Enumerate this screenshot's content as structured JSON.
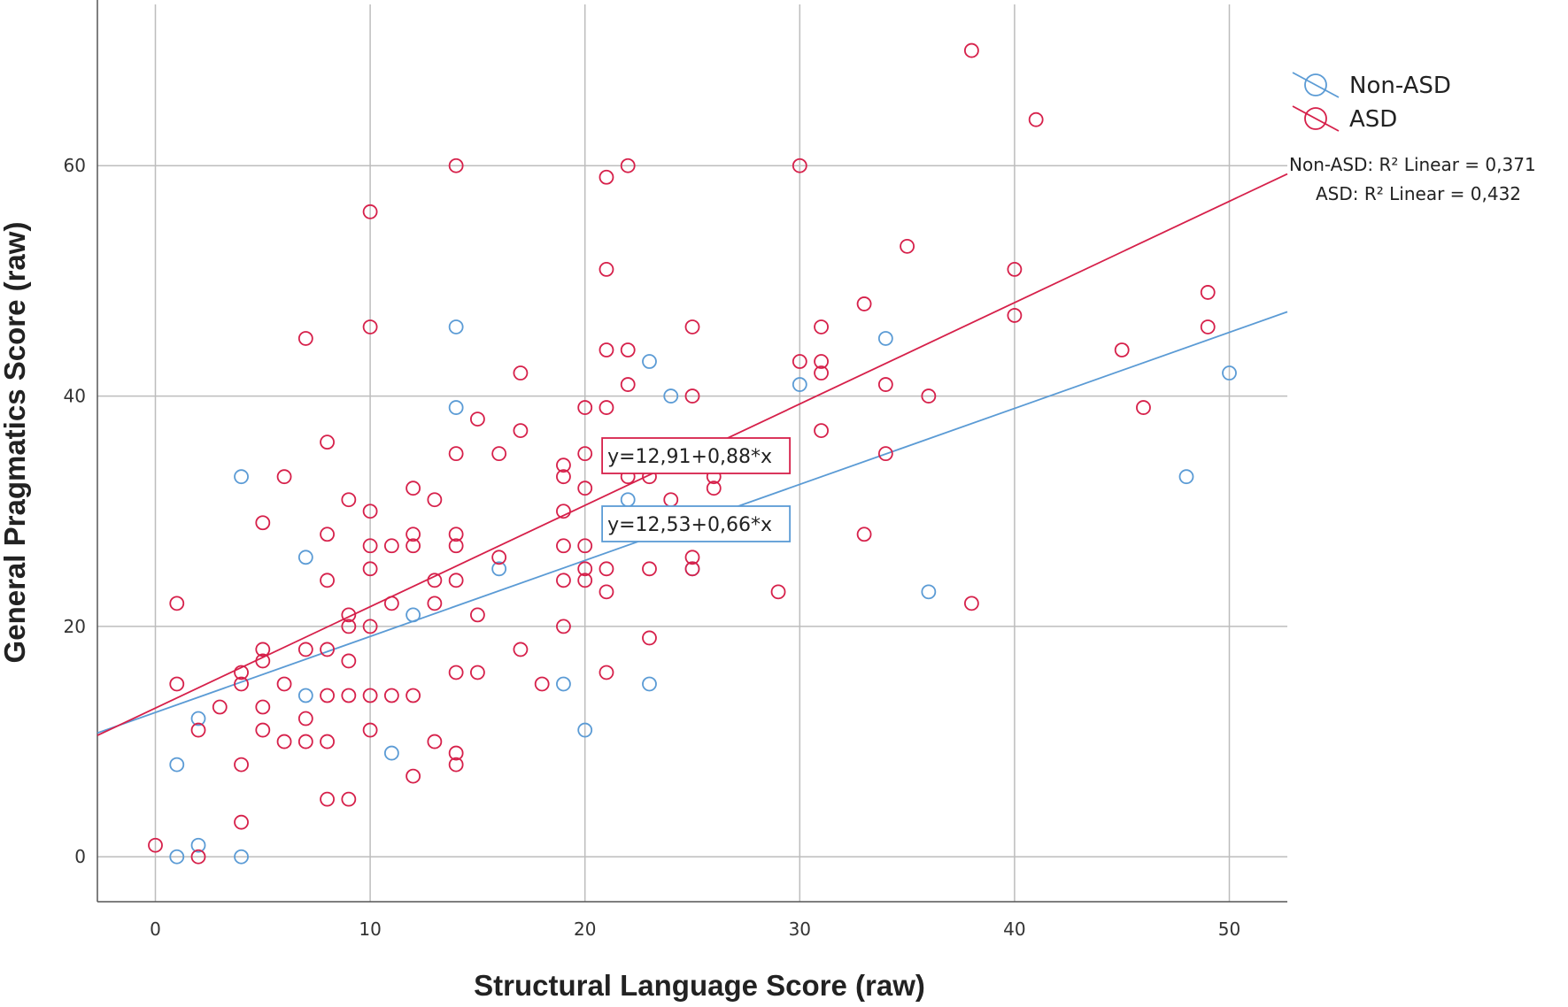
{
  "chart_data": {
    "type": "scatter",
    "xlabel": "Structural Language Score (raw)",
    "ylabel": "General Pragmatics Score (raw)",
    "xlim": [
      -2.7,
      52.7
    ],
    "ylim": [
      -3.9,
      74
    ],
    "xticks": [
      "0",
      "10",
      "20",
      "30",
      "40",
      "50"
    ],
    "yticks": [
      "0",
      "20",
      "40",
      "60"
    ],
    "grid": true,
    "legend_position": "top-right",
    "colors": {
      "non_asd": "#5b9bd5",
      "asd": "#d6204a",
      "grid": "#bdbdbd",
      "axis": "#555555"
    },
    "series": [
      {
        "name": "Non-ASD",
        "key": "non_asd",
        "r2_label": "Non-ASD: R² Linear = 0,371",
        "equation": "y=12,53+0,66*x",
        "intercept": 12.53,
        "slope": 0.66,
        "points": [
          [
            1,
            0
          ],
          [
            1,
            8
          ],
          [
            2,
            1
          ],
          [
            2,
            12
          ],
          [
            4,
            0
          ],
          [
            4,
            33
          ],
          [
            7,
            26
          ],
          [
            7,
            14
          ],
          [
            12,
            21
          ],
          [
            11,
            9
          ],
          [
            14,
            46
          ],
          [
            14,
            39
          ],
          [
            16,
            25
          ],
          [
            19,
            15
          ],
          [
            20,
            11
          ],
          [
            22,
            31
          ],
          [
            23,
            43
          ],
          [
            23,
            15
          ],
          [
            24,
            40
          ],
          [
            25,
            25
          ],
          [
            30,
            41
          ],
          [
            34,
            45
          ],
          [
            36,
            23
          ],
          [
            48,
            33
          ],
          [
            50,
            42
          ]
        ]
      },
      {
        "name": "ASD",
        "key": "asd",
        "r2_label": "ASD: R² Linear = 0,432",
        "equation": "y=12,91+0,88*x",
        "intercept": 12.91,
        "slope": 0.88,
        "points": [
          [
            0,
            1
          ],
          [
            1,
            22
          ],
          [
            1,
            15
          ],
          [
            2,
            11
          ],
          [
            2,
            0
          ],
          [
            3,
            13
          ],
          [
            4,
            16
          ],
          [
            4,
            15
          ],
          [
            4,
            8
          ],
          [
            4,
            3
          ],
          [
            5,
            29
          ],
          [
            5,
            18
          ],
          [
            5,
            17
          ],
          [
            5,
            13
          ],
          [
            5,
            11
          ],
          [
            6,
            33
          ],
          [
            6,
            15
          ],
          [
            6,
            10
          ],
          [
            7,
            45
          ],
          [
            7,
            18
          ],
          [
            7,
            12
          ],
          [
            7,
            10
          ],
          [
            8,
            36
          ],
          [
            8,
            28
          ],
          [
            8,
            24
          ],
          [
            8,
            18
          ],
          [
            8,
            14
          ],
          [
            8,
            10
          ],
          [
            8,
            5
          ],
          [
            9,
            31
          ],
          [
            9,
            21
          ],
          [
            9,
            20
          ],
          [
            9,
            17
          ],
          [
            9,
            14
          ],
          [
            9,
            5
          ],
          [
            10,
            56
          ],
          [
            10,
            46
          ],
          [
            10,
            30
          ],
          [
            10,
            27
          ],
          [
            10,
            25
          ],
          [
            10,
            20
          ],
          [
            10,
            14
          ],
          [
            10,
            11
          ],
          [
            11,
            27
          ],
          [
            11,
            22
          ],
          [
            11,
            14
          ],
          [
            12,
            32
          ],
          [
            12,
            28
          ],
          [
            12,
            27
          ],
          [
            12,
            14
          ],
          [
            12,
            7
          ],
          [
            13,
            31
          ],
          [
            13,
            24
          ],
          [
            13,
            22
          ],
          [
            13,
            10
          ],
          [
            14,
            60
          ],
          [
            14,
            35
          ],
          [
            14,
            28
          ],
          [
            14,
            27
          ],
          [
            14,
            24
          ],
          [
            14,
            16
          ],
          [
            14,
            9
          ],
          [
            14,
            8
          ],
          [
            15,
            38
          ],
          [
            15,
            21
          ],
          [
            15,
            16
          ],
          [
            16,
            35
          ],
          [
            16,
            26
          ],
          [
            17,
            42
          ],
          [
            17,
            37
          ],
          [
            17,
            18
          ],
          [
            18,
            15
          ],
          [
            19,
            34
          ],
          [
            19,
            33
          ],
          [
            19,
            30
          ],
          [
            19,
            27
          ],
          [
            19,
            24
          ],
          [
            19,
            20
          ],
          [
            20,
            39
          ],
          [
            20,
            35
          ],
          [
            20,
            32
          ],
          [
            20,
            27
          ],
          [
            20,
            25
          ],
          [
            20,
            24
          ],
          [
            21,
            59
          ],
          [
            21,
            51
          ],
          [
            21,
            44
          ],
          [
            21,
            39
          ],
          [
            21,
            25
          ],
          [
            21,
            23
          ],
          [
            21,
            16
          ],
          [
            22,
            60
          ],
          [
            22,
            44
          ],
          [
            22,
            41
          ],
          [
            22,
            33
          ],
          [
            23,
            33
          ],
          [
            23,
            25
          ],
          [
            23,
            19
          ],
          [
            24,
            31
          ],
          [
            25,
            46
          ],
          [
            25,
            40
          ],
          [
            25,
            26
          ],
          [
            25,
            25
          ],
          [
            26,
            33
          ],
          [
            26,
            32
          ],
          [
            29,
            23
          ],
          [
            30,
            60
          ],
          [
            30,
            43
          ],
          [
            31,
            46
          ],
          [
            31,
            43
          ],
          [
            31,
            42
          ],
          [
            31,
            37
          ],
          [
            33,
            48
          ],
          [
            33,
            28
          ],
          [
            34,
            41
          ],
          [
            34,
            35
          ],
          [
            35,
            53
          ],
          [
            36,
            40
          ],
          [
            38,
            70
          ],
          [
            38,
            22
          ],
          [
            40,
            51
          ],
          [
            40,
            47
          ],
          [
            41,
            64
          ],
          [
            45,
            44
          ],
          [
            46,
            39
          ],
          [
            49,
            49
          ],
          [
            49,
            46
          ]
        ]
      }
    ]
  }
}
